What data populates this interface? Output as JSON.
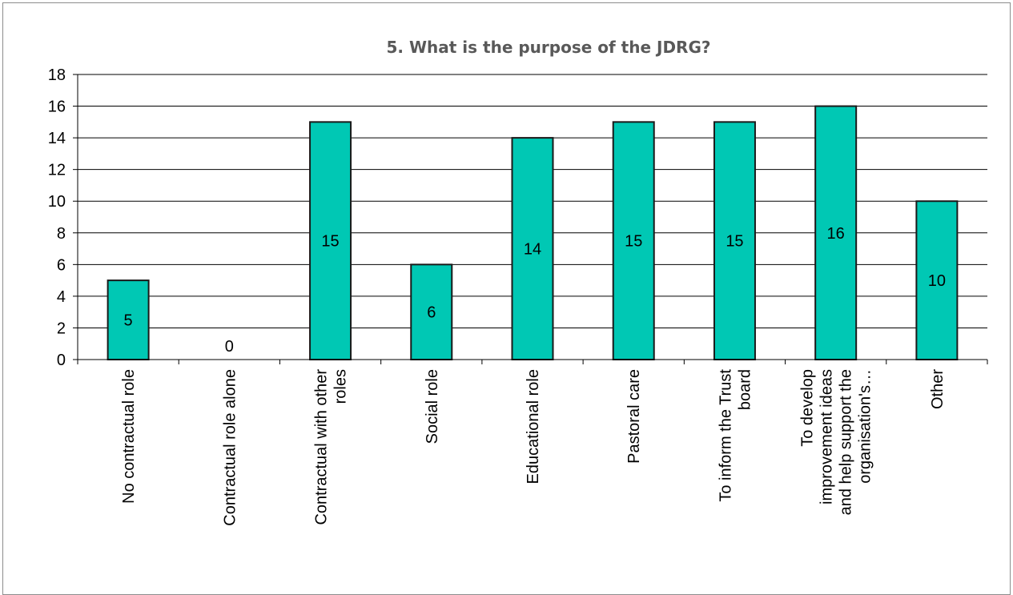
{
  "chart_data": {
    "type": "bar",
    "title": "5. What is the purpose of the JDRG?",
    "xlabel": "",
    "ylabel": "",
    "categories": [
      [
        "No contractual role"
      ],
      [
        "Contractual role alone"
      ],
      [
        "Contractual with other",
        "roles"
      ],
      [
        "Social role"
      ],
      [
        "Educational role"
      ],
      [
        "Pastoral care"
      ],
      [
        "To inform the Trust",
        "board"
      ],
      [
        "To develop",
        "improvement ideas",
        "and help support the",
        "organisation's…"
      ],
      [
        "Other"
      ]
    ],
    "values": [
      5,
      0,
      15,
      6,
      14,
      15,
      15,
      16,
      10
    ],
    "data_labels": [
      "5",
      "0",
      "15",
      "6",
      "14",
      "15",
      "15",
      "16",
      "10"
    ],
    "ylim": [
      0,
      18
    ],
    "yticks": [
      "0",
      "2",
      "4",
      "6",
      "8",
      "10",
      "12",
      "14",
      "16",
      "18"
    ],
    "grid": true,
    "legend": "none",
    "bar_color": "#00c8b4",
    "bar_edge_color": "#1a1a1a",
    "grid_color": "#000000"
  }
}
